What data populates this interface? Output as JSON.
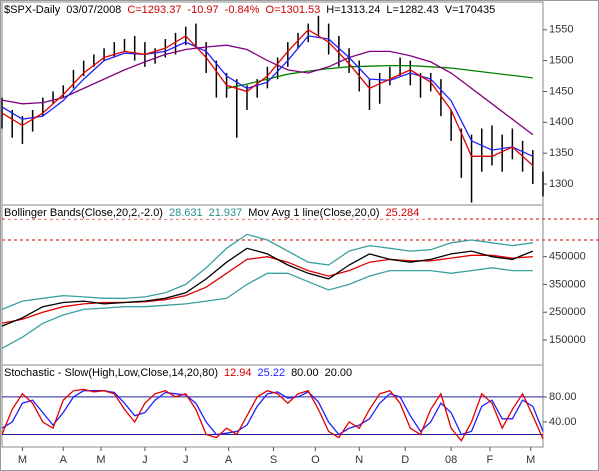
{
  "chart_data": [
    {
      "type": "price",
      "header": [
        {
          "text": "$SPX-Daily",
          "color": "#000000"
        },
        {
          "text": "03/07/2008",
          "color": "#000000"
        },
        {
          "text": "C=1293.37",
          "color": "#d00000"
        },
        {
          "text": "-10.97",
          "color": "#d00000"
        },
        {
          "text": "-0.84%",
          "color": "#d00000"
        },
        {
          "text": "O=1301.53",
          "color": "#d00000"
        },
        {
          "text": "H=1313.24",
          "color": "#000000"
        },
        {
          "text": "L=1282.43",
          "color": "#000000"
        },
        {
          "text": "V=170435",
          "color": "#000000"
        }
      ],
      "xlim": [
        0,
        53
      ],
      "ylim": [
        1266,
        1595
      ],
      "yticks": [
        1550,
        1500,
        1450,
        1400,
        1350,
        1300
      ],
      "bar_color": "#000000",
      "x": [
        0,
        1,
        2,
        3,
        4,
        5,
        6,
        7,
        8,
        9,
        10,
        11,
        12,
        13,
        14,
        15,
        16,
        17,
        18,
        19,
        20,
        21,
        22,
        23,
        24,
        25,
        26,
        27,
        28,
        29,
        30,
        31,
        32,
        33,
        34,
        35,
        36,
        37,
        38,
        39,
        40,
        41,
        42,
        43,
        44,
        45,
        46,
        47,
        48,
        49,
        50,
        51,
        52,
        53
      ],
      "high": [
        1440,
        1420,
        1410,
        1420,
        1440,
        1450,
        1460,
        1485,
        1500,
        1510,
        1520,
        1530,
        1535,
        1540,
        1530,
        1520,
        1535,
        1545,
        1555,
        1560,
        1530,
        1500,
        1480,
        1470,
        1460,
        1470,
        1490,
        1505,
        1530,
        1545,
        1560,
        1575,
        1560,
        1540,
        1520,
        1500,
        1470,
        1480,
        1490,
        1505,
        1500,
        1480,
        1480,
        1470,
        1420,
        1390,
        1380,
        1390,
        1395,
        1380,
        1390,
        1370,
        1355,
        1320
      ],
      "low": [
        1390,
        1375,
        1365,
        1385,
        1410,
        1430,
        1440,
        1455,
        1475,
        1490,
        1500,
        1505,
        1515,
        1500,
        1490,
        1495,
        1505,
        1510,
        1525,
        1520,
        1480,
        1440,
        1440,
        1375,
        1420,
        1440,
        1455,
        1470,
        1490,
        1520,
        1530,
        1540,
        1510,
        1490,
        1480,
        1450,
        1420,
        1430,
        1460,
        1475,
        1460,
        1440,
        1450,
        1410,
        1370,
        1310,
        1270,
        1320,
        1330,
        1320,
        1340,
        1320,
        1300,
        1280
      ],
      "series": [
        {
          "color": "#008000",
          "x": [
            0,
            2,
            4,
            6,
            8,
            10,
            12,
            14,
            16,
            18,
            20,
            22,
            24,
            26,
            28,
            30,
            32,
            34,
            36,
            38,
            40,
            42,
            44,
            46,
            48,
            50,
            52
          ],
          "values": [
            null,
            null,
            null,
            null,
            null,
            null,
            null,
            null,
            null,
            null,
            null,
            1455,
            1462,
            1470,
            1478,
            1483,
            1487,
            1490,
            1491,
            1492,
            1492,
            1490,
            1488,
            1484,
            1480,
            1476,
            1472
          ]
        },
        {
          "color": "#800080",
          "x": [
            0,
            2,
            4,
            6,
            8,
            10,
            12,
            14,
            16,
            18,
            20,
            22,
            24,
            26,
            28,
            30,
            32,
            34,
            36,
            38,
            40,
            42,
            44,
            46,
            48,
            50,
            52
          ],
          "values": [
            1436,
            1430,
            1432,
            1440,
            1455,
            1470,
            1485,
            1498,
            1510,
            1518,
            1522,
            1525,
            1518,
            1500,
            1485,
            1480,
            1490,
            1505,
            1515,
            1515,
            1508,
            1498,
            1480,
            1455,
            1430,
            1405,
            1380
          ]
        },
        {
          "color": "#2020ff",
          "x": [
            0,
            2,
            4,
            6,
            8,
            10,
            12,
            14,
            16,
            18,
            20,
            22,
            24,
            26,
            28,
            30,
            32,
            34,
            36,
            38,
            40,
            42,
            44,
            46,
            48,
            50,
            52
          ],
          "values": [
            1425,
            1405,
            1410,
            1435,
            1470,
            1500,
            1512,
            1510,
            1515,
            1530,
            1515,
            1475,
            1455,
            1465,
            1500,
            1540,
            1535,
            1505,
            1470,
            1468,
            1480,
            1470,
            1435,
            1370,
            1355,
            1360,
            1345
          ]
        },
        {
          "color": "#e00000",
          "x": [
            0,
            2,
            4,
            6,
            8,
            10,
            12,
            14,
            16,
            18,
            20,
            22,
            24,
            26,
            28,
            30,
            32,
            34,
            36,
            38,
            40,
            42,
            44,
            46,
            48,
            50,
            52
          ],
          "values": [
            1415,
            1395,
            1415,
            1445,
            1480,
            1505,
            1515,
            1510,
            1520,
            1540,
            1505,
            1460,
            1450,
            1475,
            1515,
            1550,
            1530,
            1495,
            1455,
            1470,
            1485,
            1465,
            1420,
            1345,
            1345,
            1360,
            1330
          ]
        }
      ]
    },
    {
      "type": "line",
      "header": [
        {
          "text": "Bollinger Bands(Close,20,2,-2.0)",
          "color": "#000000"
        },
        {
          "text": "28.631",
          "color": "#2a9090"
        },
        {
          "text": "21.937",
          "color": "#2a9090"
        },
        {
          "text": "Mov Avg 1 line(Close,20,0)",
          "color": "#000000"
        },
        {
          "text": "25.284",
          "color": "#d00000"
        }
      ],
      "xlim": [
        0,
        53
      ],
      "ylim": [
        60000,
        636000
      ],
      "yticks": [
        450000,
        350000,
        250000,
        150000
      ],
      "x": [
        0,
        2,
        4,
        6,
        8,
        10,
        12,
        14,
        16,
        18,
        20,
        22,
        24,
        26,
        28,
        30,
        32,
        34,
        36,
        38,
        40,
        42,
        44,
        46,
        48,
        50,
        52
      ],
      "series": [
        {
          "color": "#3aa0a0",
          "values": [
            260000,
            290000,
            300000,
            310000,
            305000,
            300000,
            300000,
            305000,
            320000,
            350000,
            410000,
            480000,
            530000,
            510000,
            470000,
            430000,
            420000,
            470000,
            490000,
            480000,
            470000,
            475000,
            500000,
            510000,
            500000,
            490000,
            500000
          ]
        },
        {
          "color": "#3aa0a0",
          "values": [
            120000,
            160000,
            210000,
            240000,
            260000,
            265000,
            270000,
            270000,
            275000,
            280000,
            290000,
            300000,
            350000,
            390000,
            390000,
            360000,
            330000,
            350000,
            380000,
            400000,
            400000,
            400000,
            390000,
            400000,
            410000,
            400000,
            400000
          ]
        },
        {
          "color": "#e00000",
          "values": [
            210000,
            225000,
            250000,
            270000,
            280000,
            285000,
            285000,
            288000,
            295000,
            310000,
            340000,
            390000,
            440000,
            450000,
            430000,
            400000,
            380000,
            400000,
            430000,
            440000,
            435000,
            435000,
            445000,
            455000,
            455000,
            445000,
            450000
          ]
        },
        {
          "color": "#000000",
          "values": [
            200000,
            230000,
            270000,
            285000,
            290000,
            280000,
            285000,
            290000,
            300000,
            320000,
            370000,
            430000,
            480000,
            460000,
            420000,
            390000,
            370000,
            420000,
            460000,
            440000,
            430000,
            440000,
            460000,
            470000,
            450000,
            440000,
            470000
          ]
        }
      ]
    },
    {
      "type": "line",
      "header": [
        {
          "text": "Stochastic - Slow(High,Low,Close,14,20,80)",
          "color": "#000000"
        },
        {
          "text": "12.94",
          "color": "#d00000"
        },
        {
          "text": "25.22",
          "color": "#2020ff"
        },
        {
          "text": "80.00",
          "color": "#000000"
        },
        {
          "text": "20.00",
          "color": "#000000"
        }
      ],
      "xlim": [
        0,
        53
      ],
      "ylim": [
        0,
        131
      ],
      "yticks": [
        {
          "value": 80,
          "label": "80.00"
        },
        {
          "value": 40,
          "label": "40.00"
        }
      ],
      "levels": [
        80,
        20
      ],
      "level_color": "#2020a0",
      "xticks": [
        {
          "value": 2,
          "label": "M"
        },
        {
          "value": 6,
          "label": "A"
        },
        {
          "value": 9.7,
          "label": "M"
        },
        {
          "value": 14,
          "label": "J"
        },
        {
          "value": 18,
          "label": "J"
        },
        {
          "value": 22.2,
          "label": "A"
        },
        {
          "value": 26.6,
          "label": "S"
        },
        {
          "value": 30.7,
          "label": "O"
        },
        {
          "value": 35,
          "label": "N"
        },
        {
          "value": 39.5,
          "label": "D"
        },
        {
          "value": 44,
          "label": "08"
        },
        {
          "value": 47.8,
          "label": "F"
        },
        {
          "value": 51.8,
          "label": "M"
        }
      ],
      "x": [
        0,
        1,
        2,
        3,
        4,
        5,
        6,
        7,
        8,
        9,
        10,
        11,
        12,
        13,
        14,
        15,
        16,
        17,
        18,
        19,
        20,
        21,
        22,
        23,
        24,
        25,
        26,
        27,
        28,
        29,
        30,
        31,
        32,
        33,
        34,
        35,
        36,
        37,
        38,
        39,
        40,
        41,
        42,
        43,
        44,
        45,
        46,
        47,
        48,
        49,
        50,
        51,
        52,
        53
      ],
      "series": [
        {
          "color": "#2020ff",
          "values": [
            30,
            40,
            70,
            75,
            55,
            35,
            55,
            80,
            90,
            90,
            90,
            87,
            70,
            50,
            55,
            75,
            87,
            85,
            83,
            70,
            40,
            20,
            22,
            25,
            35,
            65,
            85,
            88,
            78,
            80,
            88,
            72,
            40,
            20,
            30,
            35,
            45,
            70,
            85,
            80,
            50,
            25,
            40,
            70,
            55,
            20,
            25,
            65,
            75,
            45,
            45,
            75,
            65,
            25
          ]
        },
        {
          "color": "#e00000",
          "values": [
            20,
            60,
            85,
            70,
            40,
            30,
            75,
            90,
            92,
            88,
            90,
            85,
            60,
            40,
            70,
            85,
            90,
            80,
            85,
            60,
            20,
            15,
            30,
            20,
            50,
            80,
            90,
            85,
            70,
            85,
            90,
            60,
            25,
            15,
            40,
            30,
            60,
            85,
            90,
            70,
            30,
            20,
            60,
            85,
            30,
            10,
            40,
            85,
            70,
            30,
            60,
            85,
            50,
            13
          ]
        }
      ]
    }
  ]
}
